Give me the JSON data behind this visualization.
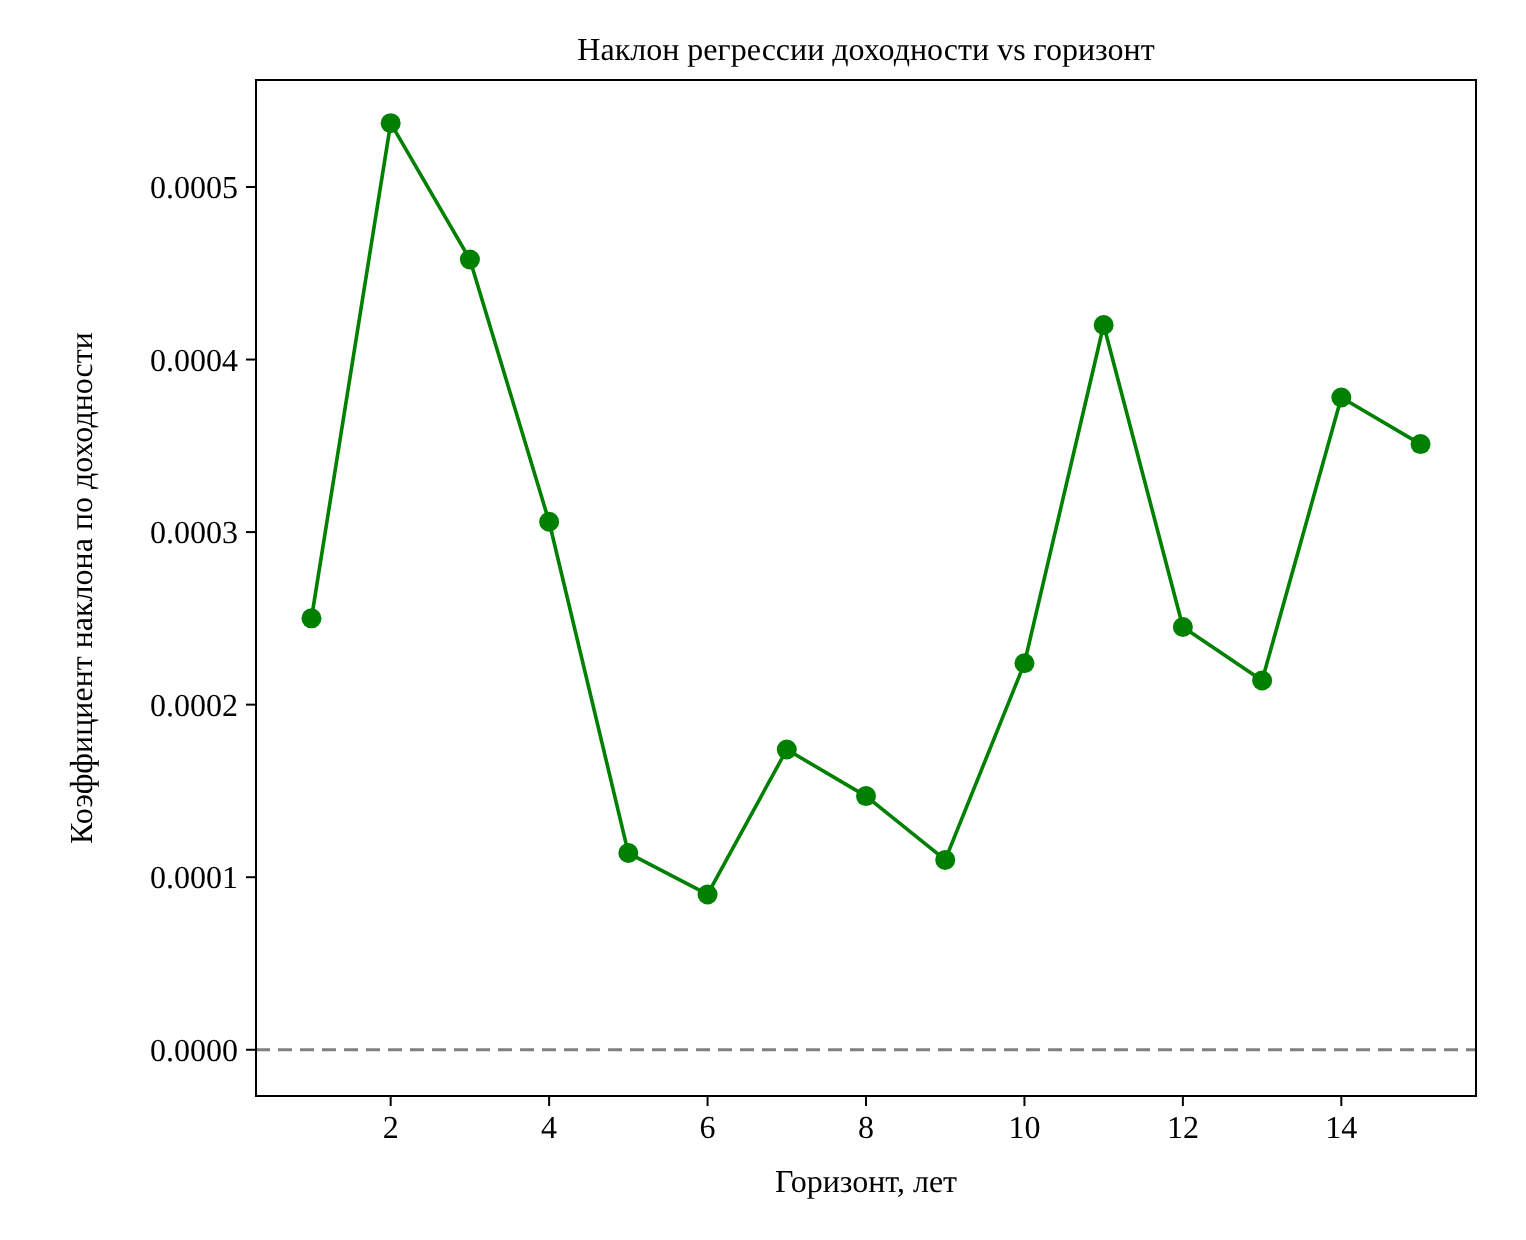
{
  "chart_data": {
    "type": "line",
    "title": "Наклон регрессии доходности vs горизонт",
    "xlabel": "Горизонт, лет",
    "ylabel": "Коэффициент наклона по доходности",
    "x": [
      1,
      2,
      3,
      4,
      5,
      6,
      7,
      8,
      9,
      10,
      11,
      12,
      13,
      14,
      15
    ],
    "series": [
      {
        "color": "#008000",
        "values": [
          0.00025,
          0.000537,
          0.000458,
          0.000306,
          0.000114,
          9e-05,
          0.000174,
          0.000147,
          0.00011,
          0.000224,
          0.00042,
          0.000245,
          0.000214,
          0.000378,
          0.000351
        ]
      }
    ],
    "xlim": [
      0.3,
      15.7
    ],
    "xticks": [
      2,
      4,
      6,
      8,
      10,
      12,
      14
    ],
    "ylim": [
      -2.68e-05,
      0.000562
    ],
    "yticks": [
      {
        "value": 0,
        "label": "0.0000"
      },
      {
        "value": 0.0001,
        "label": "0.0001"
      },
      {
        "value": 0.0002,
        "label": "0.0002"
      },
      {
        "value": 0.0003,
        "label": "0.0003"
      },
      {
        "value": 0.0004,
        "label": "0.0004"
      },
      {
        "value": 0.0005,
        "label": "0.0005"
      }
    ],
    "ref_lines": [
      {
        "axis": "y",
        "value": 0,
        "color": "#808080",
        "line_style": "dashed"
      }
    ],
    "marker": "circle",
    "line_style": "solid"
  }
}
